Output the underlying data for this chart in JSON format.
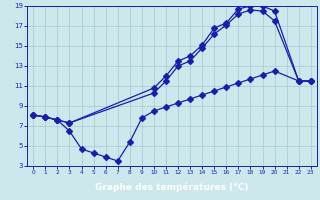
{
  "xlabel": "Graphe des températures (°C)",
  "bg_color": "#cde8ec",
  "line_color": "#1c1cb0",
  "grid_color": "#aacdd4",
  "xlabel_bg": "#2a2ab0",
  "xlabel_fg": "#ffffff",
  "xlim": [
    -0.5,
    23.5
  ],
  "ylim": [
    3,
    19
  ],
  "xticks": [
    0,
    1,
    2,
    3,
    4,
    5,
    6,
    7,
    8,
    9,
    10,
    11,
    12,
    13,
    14,
    15,
    16,
    17,
    18,
    19,
    20,
    21,
    22,
    23
  ],
  "yticks": [
    3,
    5,
    7,
    9,
    11,
    13,
    15,
    17,
    19
  ],
  "line1_x": [
    0,
    1,
    2,
    3,
    10,
    11,
    12,
    13,
    14,
    15,
    16,
    17,
    18,
    19,
    20,
    22,
    23
  ],
  "line1_y": [
    8.1,
    7.9,
    7.6,
    7.3,
    10.8,
    12.0,
    13.5,
    14.0,
    15.1,
    16.8,
    17.3,
    18.7,
    19.0,
    19.0,
    18.5,
    11.5,
    11.5
  ],
  "line2_x": [
    0,
    1,
    2,
    3,
    10,
    11,
    12,
    13,
    14,
    15,
    16,
    17,
    18,
    19,
    20,
    22,
    23
  ],
  "line2_y": [
    8.1,
    7.9,
    7.6,
    7.3,
    10.3,
    11.5,
    13.0,
    13.5,
    14.8,
    16.2,
    17.1,
    18.2,
    18.6,
    18.5,
    17.5,
    11.5,
    11.5
  ],
  "line3_x": [
    0,
    1,
    2,
    3,
    4,
    5,
    6,
    7,
    8,
    9,
    10,
    11,
    12,
    13,
    14,
    15,
    16,
    17,
    18,
    19,
    20,
    22,
    23
  ],
  "line3_y": [
    8.1,
    7.9,
    7.6,
    6.5,
    4.7,
    4.3,
    3.9,
    3.5,
    5.4,
    7.8,
    8.5,
    8.9,
    9.3,
    9.7,
    10.1,
    10.5,
    10.9,
    11.3,
    11.7,
    12.1,
    12.5,
    11.5,
    11.5
  ]
}
